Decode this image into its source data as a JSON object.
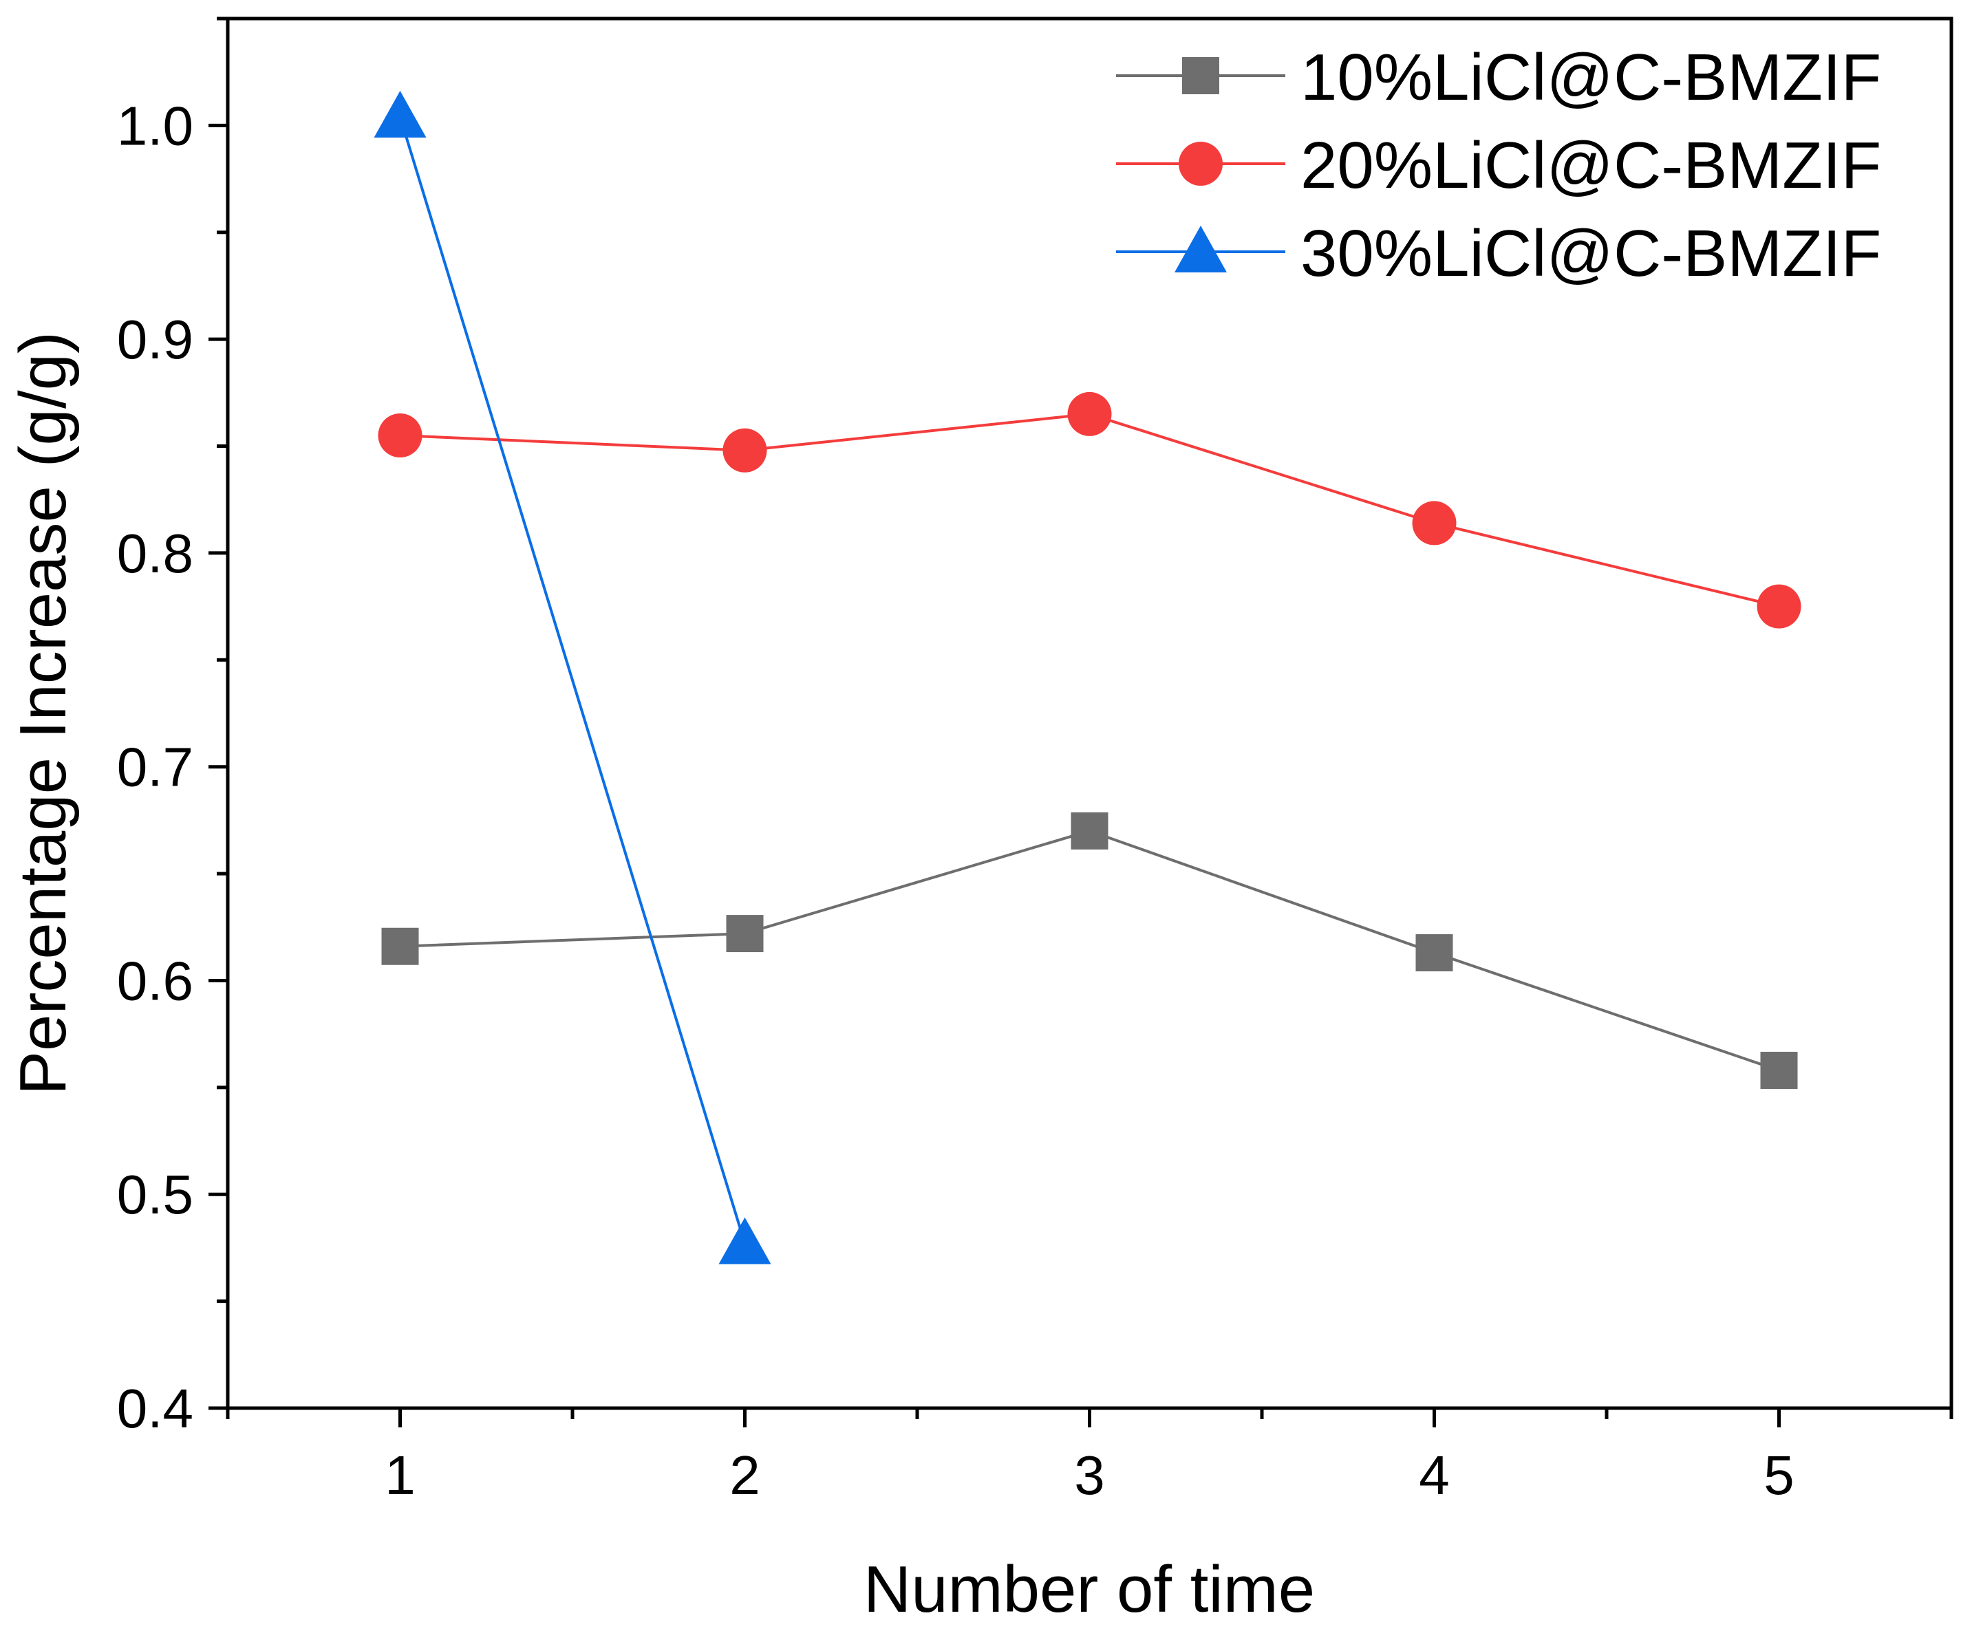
{
  "chart_data": {
    "type": "line",
    "title": "",
    "xlabel": "Number of time",
    "ylabel": "Percentage Increase (g/g)",
    "xlim": [
      0.5,
      5.5
    ],
    "ylim": [
      0.4,
      1.05
    ],
    "x_ticks": [
      1,
      2,
      3,
      4,
      5
    ],
    "x_tick_labels": [
      "1",
      "2",
      "3",
      "4",
      "5"
    ],
    "y_ticks": [
      0.4,
      0.5,
      0.6,
      0.7,
      0.8,
      0.9,
      1.0
    ],
    "y_tick_labels": [
      "0.4",
      "0.5",
      "0.6",
      "0.7",
      "0.8",
      "0.9",
      "1.0"
    ],
    "grid": false,
    "legend_position": "top-right",
    "series": [
      {
        "name": "10%LiCl@C-BMZIF",
        "color": "#6e6e6e",
        "marker": "square",
        "x": [
          1,
          2,
          3,
          4,
          5
        ],
        "values": [
          0.616,
          0.622,
          0.67,
          0.613,
          0.558
        ]
      },
      {
        "name": "20%LiCl@C-BMZIF",
        "color": "#f43c3c",
        "marker": "circle",
        "x": [
          1,
          2,
          3,
          4,
          5
        ],
        "values": [
          0.855,
          0.848,
          0.865,
          0.814,
          0.775
        ]
      },
      {
        "name": "30%LiCl@C-BMZIF",
        "color": "#0a6ee6",
        "marker": "triangle",
        "x": [
          1,
          2
        ],
        "values": [
          1.004,
          0.477
        ]
      }
    ]
  }
}
